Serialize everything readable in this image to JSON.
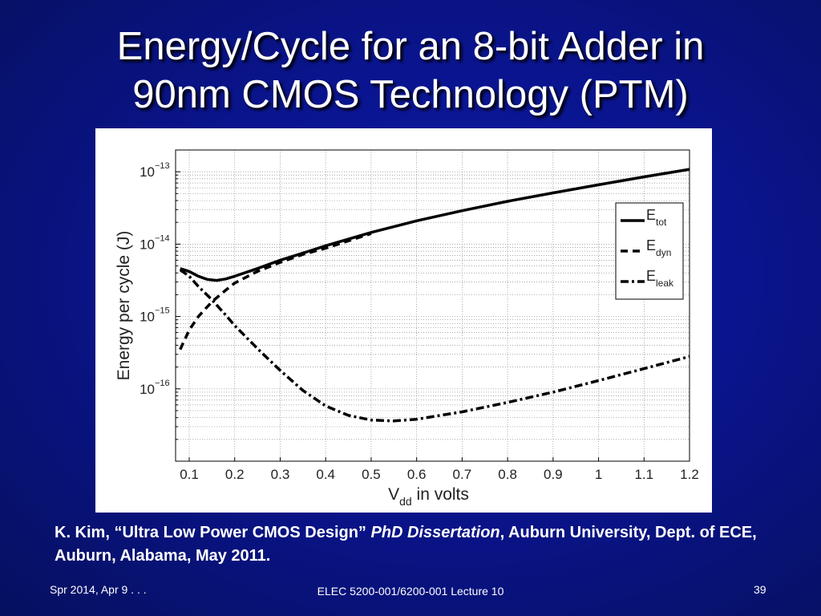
{
  "slide": {
    "title_line1": "Energy/Cycle for an 8-bit Adder in",
    "title_line2": "90nm CMOS Technology (PTM)",
    "citation": {
      "part1": "K. Kim, “Ultra Low Power CMOS Design” ",
      "part2": "PhD Dissertation",
      "part3": ", Auburn University, Dept. of ECE, Auburn, Alabama, May 2011."
    },
    "footer": {
      "left": "Spr 2014, Apr 9 . . .",
      "center": "ELEC 5200-001/6200-001 Lecture 10",
      "right": "39"
    }
  },
  "chart_data": {
    "type": "line",
    "xlabel_main": "V",
    "xlabel_sub": "dd",
    "xlabel_rest": " in volts",
    "ylabel": "Energy per cycle (J)",
    "xlim": [
      0.07,
      1.2
    ],
    "ylim": [
      1e-17,
      2e-13
    ],
    "yscale": "log",
    "x_ticks": [
      0.1,
      0.2,
      0.3,
      0.4,
      0.5,
      0.6,
      0.7,
      0.8,
      0.9,
      1,
      1.1,
      1.2
    ],
    "x_tick_labels": [
      "0.1",
      "0.2",
      "0.3",
      "0.4",
      "0.5",
      "0.6",
      "0.7",
      "0.8",
      "0.9",
      "1",
      "1.1",
      "1.2"
    ],
    "y_ticks": [
      {
        "value": 1e-13,
        "base": "10",
        "exp": "−13"
      },
      {
        "value": 1e-14,
        "base": "10",
        "exp": "−14"
      },
      {
        "value": 1e-15,
        "base": "10",
        "exp": "−15"
      },
      {
        "value": 1e-16,
        "base": "10",
        "exp": "−16"
      }
    ],
    "grid": true,
    "legend_position": "right",
    "series": [
      {
        "name_main": "E",
        "name_sub": "tot",
        "style": "solid",
        "x": [
          0.08,
          0.1,
          0.12,
          0.14,
          0.16,
          0.18,
          0.2,
          0.25,
          0.3,
          0.35,
          0.4,
          0.5,
          0.6,
          0.7,
          0.8,
          0.9,
          1.0,
          1.1,
          1.2
        ],
        "y": [
          4.6e-15,
          4.2e-15,
          3.6e-15,
          3.25e-15,
          3.15e-15,
          3.3e-15,
          3.6e-15,
          4.6e-15,
          6e-15,
          7.5e-15,
          9.5e-15,
          1.45e-14,
          2.1e-14,
          2.9e-14,
          3.9e-14,
          5.1e-14,
          6.6e-14,
          8.5e-14,
          1.08e-13
        ]
      },
      {
        "name_main": "E",
        "name_sub": "dyn",
        "style": "dashed",
        "x": [
          0.08,
          0.1,
          0.12,
          0.15,
          0.18,
          0.2,
          0.25,
          0.3,
          0.35,
          0.4,
          0.5
        ],
        "y": [
          3.5e-16,
          6.5e-16,
          1e-15,
          1.6e-15,
          2.3e-15,
          2.9e-15,
          4.2e-15,
          5.6e-15,
          7.2e-15,
          8.8e-15,
          1.4e-14
        ]
      },
      {
        "name_main": "E",
        "name_sub": "leak",
        "style": "dashdot",
        "x": [
          0.08,
          0.1,
          0.12,
          0.15,
          0.18,
          0.2,
          0.25,
          0.3,
          0.35,
          0.4,
          0.45,
          0.5,
          0.55,
          0.6,
          0.7,
          0.8,
          0.9,
          1.0,
          1.1,
          1.2
        ],
        "y": [
          4.4e-15,
          3.6e-15,
          2.6e-15,
          1.7e-15,
          1.05e-15,
          7.5e-16,
          3.6e-16,
          1.8e-16,
          9.5e-17,
          5.8e-17,
          4.3e-17,
          3.7e-17,
          3.6e-17,
          3.8e-17,
          4.8e-17,
          6.5e-17,
          9e-17,
          1.3e-16,
          1.9e-16,
          2.8e-16
        ]
      }
    ]
  }
}
